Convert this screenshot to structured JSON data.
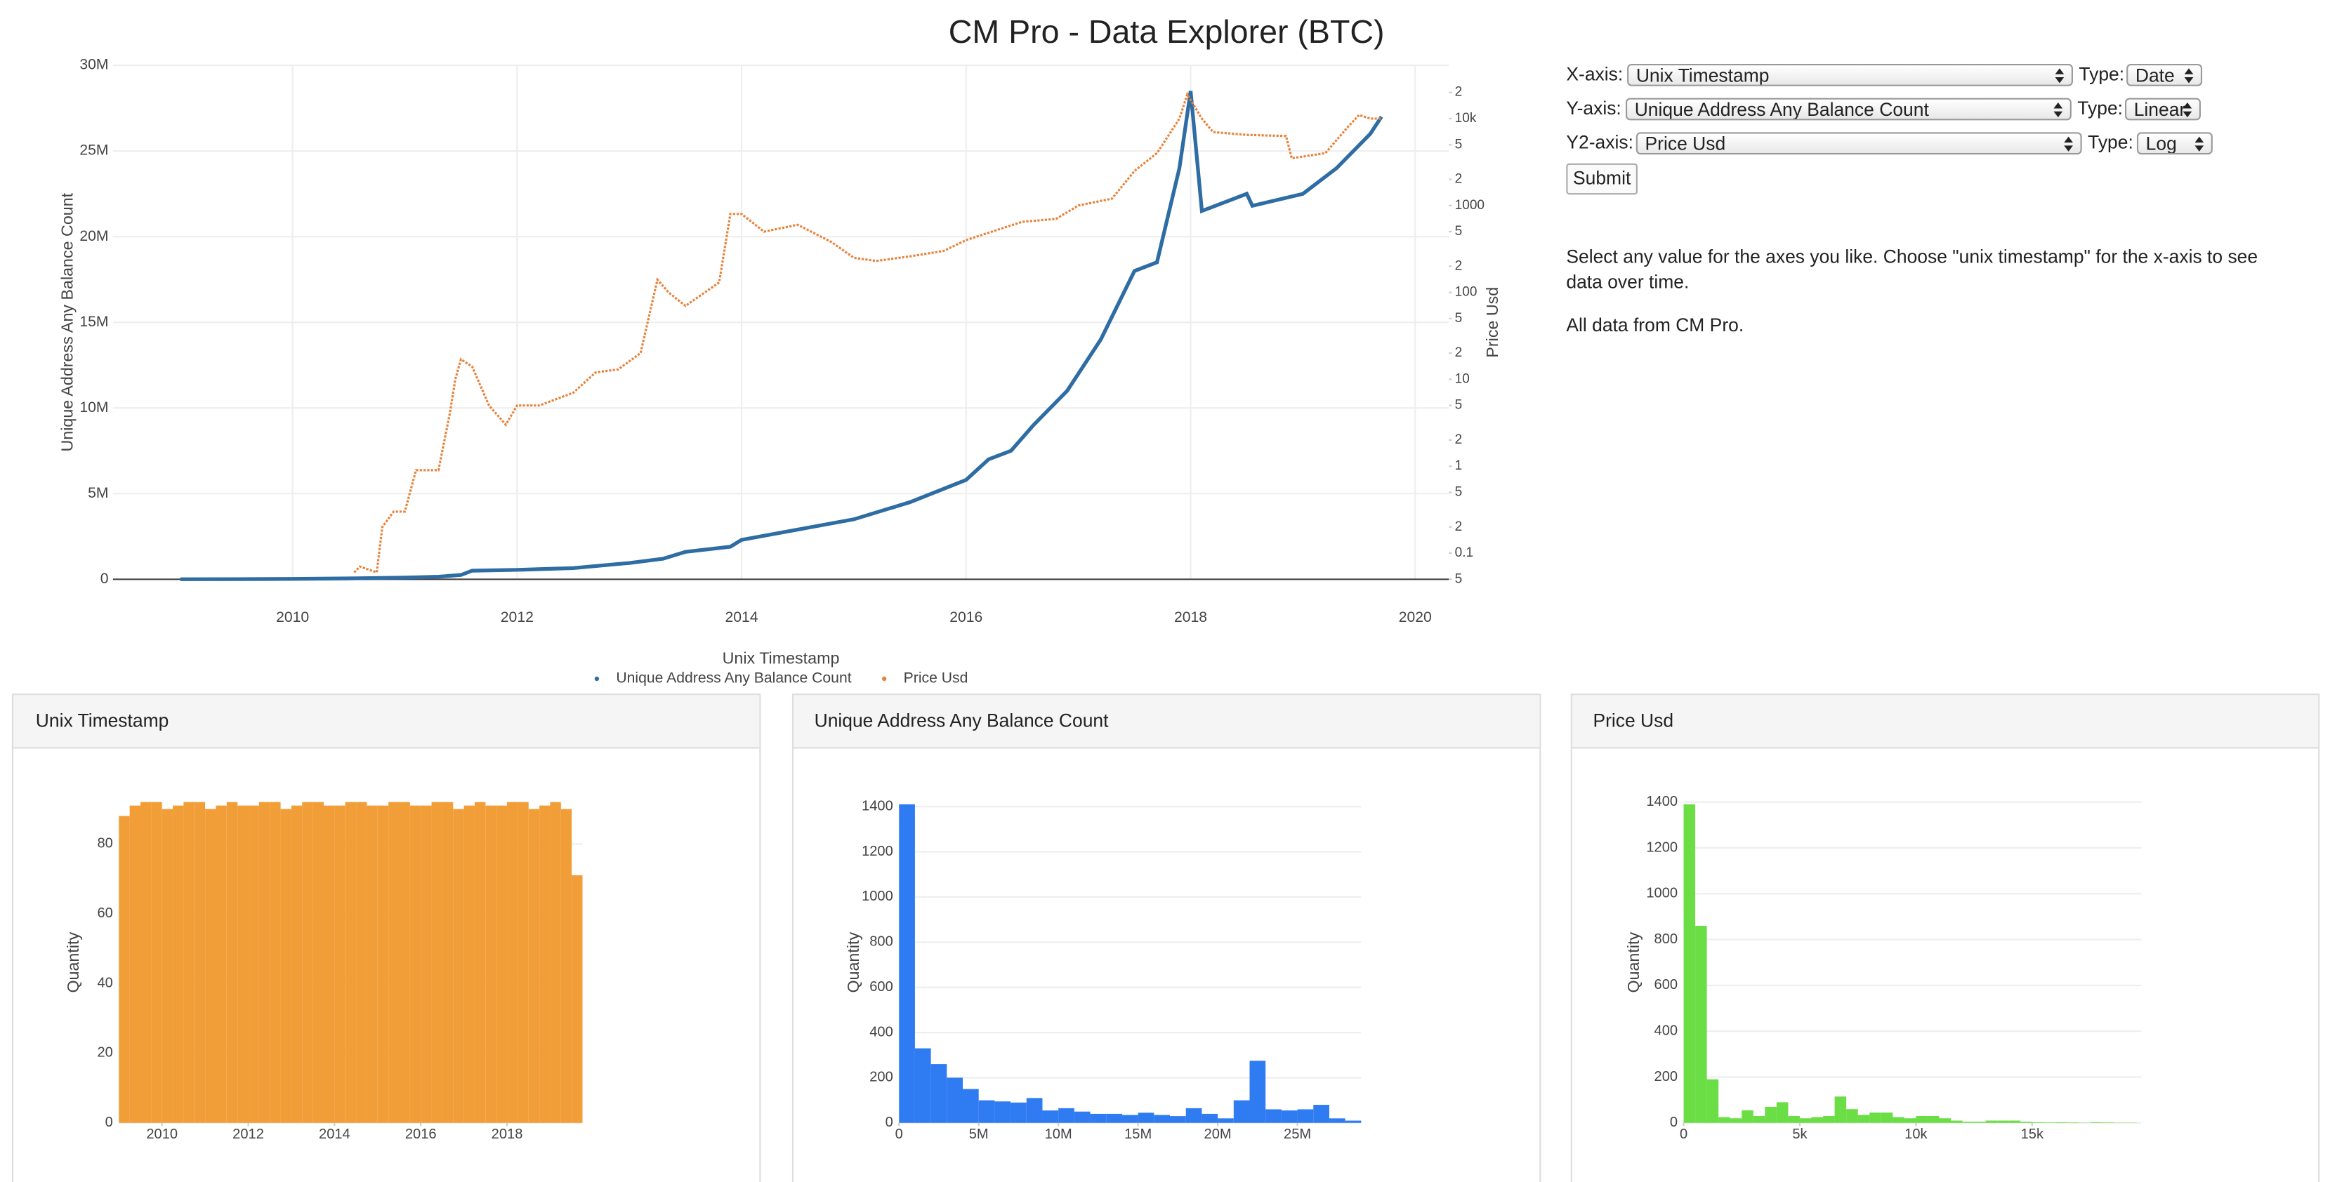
{
  "title": "CM Pro - Data Explorer (BTC)",
  "controls": [
    {
      "label": "X-axis:",
      "value": "Unix Timestamp",
      "type_label": "Type:",
      "type": "Date"
    },
    {
      "label": "Y-axis:",
      "value": "Unique Address Any Balance Count",
      "type_label": "Type:",
      "type": "Linear"
    },
    {
      "label": "Y2-axis:",
      "value": "Price Usd",
      "type_label": "Type:",
      "type": "Log"
    }
  ],
  "submit": "Submit",
  "description": [
    "Select any value for the axes you like. Choose \"unix timestamp\" for the x-axis to see data over time.",
    "All data from CM Pro."
  ],
  "chart_data": [
    {
      "type": "scatter",
      "x_label": "Unix Timestamp",
      "y_label": "Unique Address Any Balance Count",
      "y2_label": "Price Usd",
      "xlim": [
        2008.4,
        2020.3
      ],
      "xticks": [
        2010,
        2012,
        2014,
        2016,
        2018,
        2020
      ],
      "ylim": [
        0,
        30000000
      ],
      "yticks": [
        0,
        {
          "value": 5000000,
          "label": "5M"
        },
        {
          "value": 10000000,
          "label": "10M"
        },
        {
          "value": 15000000,
          "label": "15M"
        },
        {
          "value": 20000000,
          "label": "20M"
        },
        {
          "value": 25000000,
          "label": "25M"
        },
        {
          "value": 30000000,
          "label": "30M"
        }
      ],
      "y2lim": [
        0.05,
        41000
      ],
      "y2_log": true,
      "y2ticks": [
        {
          "value": 0.05,
          "label": "5"
        },
        0.1,
        {
          "value": 0.2,
          "label": "2"
        },
        {
          "value": 0.5,
          "label": "5"
        },
        1,
        {
          "value": 2,
          "label": "2"
        },
        {
          "value": 5,
          "label": "5"
        },
        10,
        {
          "value": 20,
          "label": "2"
        },
        {
          "value": 50,
          "label": "5"
        },
        100,
        {
          "value": 200,
          "label": "2"
        },
        {
          "value": 500,
          "label": "5"
        },
        1000,
        {
          "value": 2000,
          "label": "2"
        },
        {
          "value": 5000,
          "label": "5"
        },
        {
          "value": 10000,
          "label": "10k"
        },
        {
          "value": 20000,
          "label": "2"
        }
      ],
      "grid": true,
      "legend": "bottom",
      "series": [
        {
          "name": "Unique Address Any Balance Count",
          "color": "#2e6da4",
          "axis": "y",
          "x": [
            2009.0,
            2009.5,
            2010.0,
            2010.5,
            2011.0,
            2011.3,
            2011.5,
            2011.6,
            2012.0,
            2012.5,
            2013.0,
            2013.3,
            2013.5,
            2013.9,
            2014.0,
            2014.5,
            2015.0,
            2015.5,
            2016.0,
            2016.2,
            2016.4,
            2016.6,
            2016.9,
            2017.2,
            2017.5,
            2017.7,
            2017.9,
            2018.0,
            2018.1,
            2018.5,
            2018.55,
            2019.0,
            2019.3,
            2019.6,
            2019.7
          ],
          "values": [
            0,
            5000,
            20000,
            50000,
            100000,
            150000,
            250000,
            500000,
            550000,
            650000,
            950000,
            1200000,
            1600000,
            1900000,
            2300000,
            2900000,
            3500000,
            4500000,
            5800000,
            7000000,
            7500000,
            9000000,
            11000000,
            14000000,
            18000000,
            18500000,
            24000000,
            28500000,
            21500000,
            22500000,
            21800000,
            22500000,
            24000000,
            26000000,
            27000000
          ]
        },
        {
          "name": "Price Usd",
          "color": "#e8823a",
          "axis": "y2",
          "x": [
            2010.55,
            2010.6,
            2010.75,
            2010.8,
            2010.9,
            2011.0,
            2011.1,
            2011.3,
            2011.4,
            2011.45,
            2011.5,
            2011.6,
            2011.75,
            2011.9,
            2012.0,
            2012.2,
            2012.5,
            2012.7,
            2012.9,
            2013.1,
            2013.25,
            2013.35,
            2013.5,
            2013.8,
            2013.9,
            2014.0,
            2014.2,
            2014.5,
            2014.8,
            2015.0,
            2015.2,
            2015.5,
            2015.8,
            2016.0,
            2016.5,
            2016.8,
            2017.0,
            2017.3,
            2017.5,
            2017.7,
            2017.9,
            2017.97,
            2018.1,
            2018.2,
            2018.5,
            2018.85,
            2018.9,
            2019.2,
            2019.4,
            2019.5,
            2019.6,
            2019.7
          ],
          "values": [
            0.06,
            0.07,
            0.06,
            0.2,
            0.3,
            0.3,
            0.9,
            0.9,
            4,
            10,
            17,
            14,
            5,
            3,
            5,
            5,
            7,
            12,
            13,
            20,
            140,
            100,
            70,
            130,
            800,
            800,
            500,
            600,
            380,
            250,
            230,
            260,
            300,
            400,
            650,
            700,
            1000,
            1200,
            2500,
            4000,
            10000,
            19000,
            10000,
            7000,
            6500,
            6300,
            3500,
            4000,
            8000,
            11000,
            10000,
            10000
          ]
        }
      ]
    },
    {
      "type": "histogram",
      "title": "Unix Timestamp",
      "y_label": "Quantity",
      "color": "#f29e38",
      "bins": [
        2009.0,
        2009.25,
        2009.5,
        2009.75,
        2010.0,
        2010.25,
        2010.5,
        2010.75,
        2011.0,
        2011.25,
        2011.5,
        2011.75,
        2012.0,
        2012.25,
        2012.5,
        2012.75,
        2013.0,
        2013.25,
        2013.5,
        2013.75,
        2014.0,
        2014.25,
        2014.5,
        2014.75,
        2015.0,
        2015.25,
        2015.5,
        2015.75,
        2016.0,
        2016.25,
        2016.5,
        2016.75,
        2017.0,
        2017.25,
        2017.5,
        2017.75,
        2018.0,
        2018.25,
        2018.5,
        2018.75,
        2019.0,
        2019.25,
        2019.5,
        2019.75
      ],
      "values": [
        88,
        91,
        92,
        92,
        90,
        91,
        92,
        92,
        90,
        91,
        92,
        91,
        91,
        92,
        92,
        90,
        91,
        92,
        92,
        91,
        91,
        92,
        92,
        91,
        91,
        92,
        92,
        91,
        91,
        92,
        92,
        90,
        91,
        92,
        91,
        91,
        92,
        92,
        90,
        91,
        92,
        90,
        71
      ],
      "xlim": [
        2009.0,
        2019.75
      ],
      "xticks": [
        2010,
        2012,
        2014,
        2016,
        2018
      ],
      "ylim": [
        0,
        92
      ],
      "yticks": [
        0,
        20,
        40,
        60,
        80
      ],
      "grid": true
    },
    {
      "type": "histogram",
      "title": "Unique Address Any Balance Count",
      "y_label": "Quantity",
      "color": "#2f7cf2",
      "bins": [
        0,
        1000000,
        2000000,
        3000000,
        4000000,
        5000000,
        6000000,
        7000000,
        8000000,
        9000000,
        10000000,
        11000000,
        12000000,
        13000000,
        14000000,
        15000000,
        16000000,
        17000000,
        18000000,
        19000000,
        20000000,
        21000000,
        22000000,
        23000000,
        24000000,
        25000000,
        26000000,
        27000000,
        28000000,
        29000000
      ],
      "values": [
        1410,
        330,
        260,
        200,
        150,
        100,
        95,
        90,
        110,
        55,
        65,
        50,
        40,
        40,
        35,
        45,
        35,
        30,
        65,
        40,
        20,
        100,
        275,
        60,
        55,
        60,
        80,
        20,
        10
      ],
      "xlim": [
        0,
        29000000
      ],
      "xticks": [
        0,
        {
          "value": 5000000,
          "label": "5M"
        },
        {
          "value": 10000000,
          "label": "10M"
        },
        {
          "value": 15000000,
          "label": "15M"
        },
        {
          "value": 20000000,
          "label": "20M"
        },
        {
          "value": 25000000,
          "label": "25M"
        }
      ],
      "ylim": [
        0,
        1420
      ],
      "yticks": [
        0,
        200,
        400,
        600,
        800,
        1000,
        1200,
        1400
      ],
      "grid": true
    },
    {
      "type": "histogram",
      "title": "Price Usd",
      "y_label": "Quantity",
      "color": "#6bdd45",
      "bins": [
        0,
        500,
        1000,
        1500,
        2000,
        2500,
        3000,
        3500,
        4000,
        4500,
        5000,
        5500,
        6000,
        6500,
        7000,
        7500,
        8000,
        8500,
        9000,
        9500,
        10000,
        10500,
        11000,
        11500,
        12000,
        12500,
        13000,
        13500,
        14000,
        14500,
        15000,
        15500,
        16000,
        16500,
        17000,
        17500,
        18000,
        18500,
        19000,
        19500
      ],
      "values": [
        1390,
        860,
        190,
        25,
        20,
        55,
        30,
        70,
        90,
        30,
        20,
        25,
        30,
        115,
        60,
        35,
        45,
        45,
        25,
        20,
        30,
        30,
        20,
        10,
        5,
        5,
        10,
        10,
        10,
        5,
        3,
        2,
        3,
        2,
        1,
        3,
        2,
        1,
        1
      ],
      "xlim": [
        0,
        19700
      ],
      "xticks": [
        0,
        {
          "value": 5000,
          "label": "5k"
        },
        {
          "value": 10000,
          "label": "10k"
        },
        {
          "value": 15000,
          "label": "15k"
        }
      ],
      "ylim": [
        0,
        1400
      ],
      "yticks": [
        0,
        200,
        400,
        600,
        800,
        1000,
        1200,
        1400
      ],
      "grid": true
    }
  ]
}
